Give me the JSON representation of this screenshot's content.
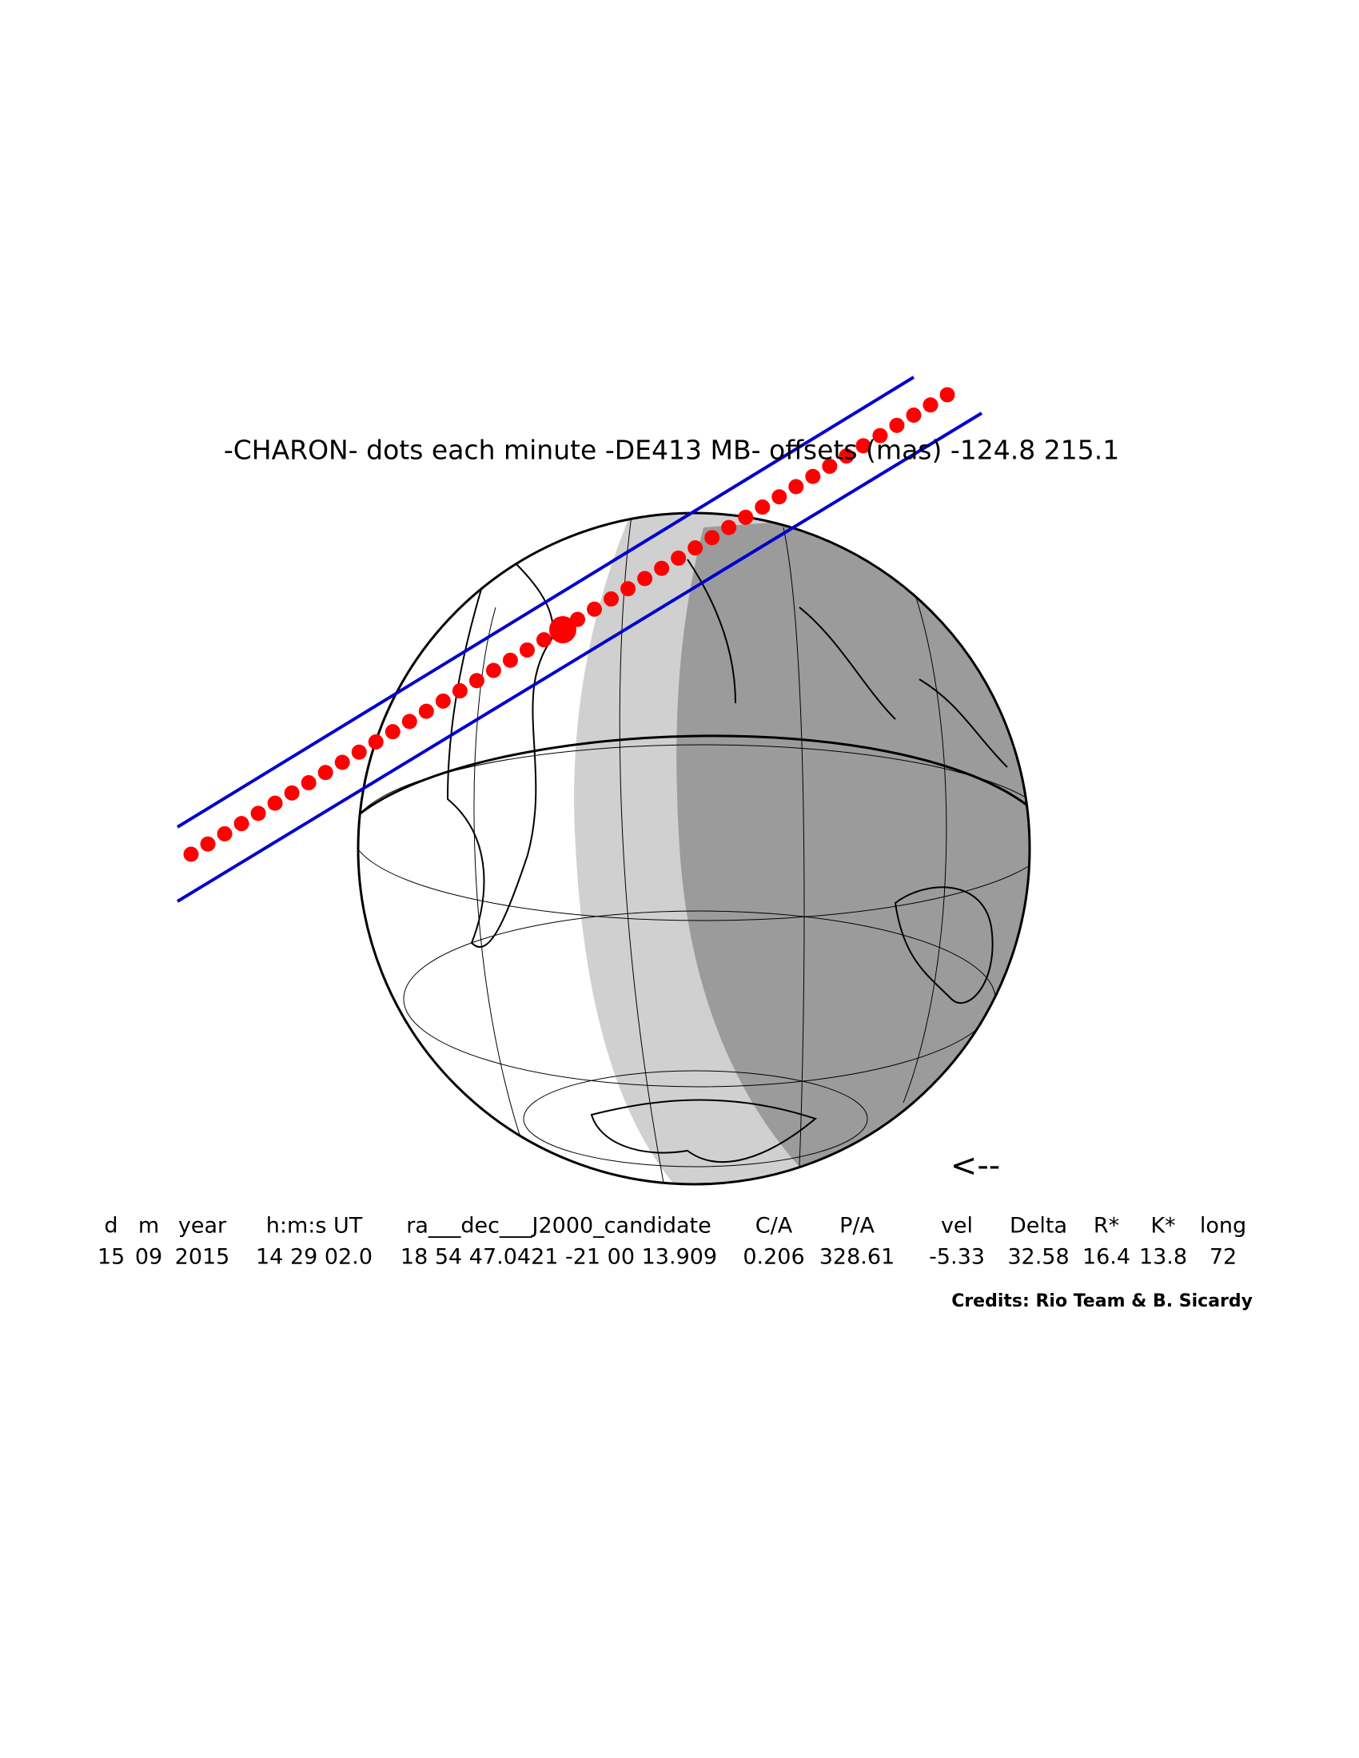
{
  "title": "-CHARON- dots each minute -DE413 MB- offsets (mas) -124.8  215.1",
  "table": {
    "headers": [
      "d",
      "m",
      "year",
      "h:m:s UT",
      "ra___dec___J2000_candidate",
      "C/A",
      "P/A",
      "vel",
      "Delta",
      "R*",
      "K*",
      "long"
    ],
    "rows": [
      [
        "15",
        "09",
        "2015",
        "14 29 02.0",
        "18 54 47.0421 -21 00 13.909",
        "0.206",
        "328.61",
        "-5.33",
        "32.58",
        "16.4",
        "13.8",
        "72"
      ]
    ]
  },
  "arrow": "<--",
  "credits": "Credits: Rio Team & B. Sicardy"
}
